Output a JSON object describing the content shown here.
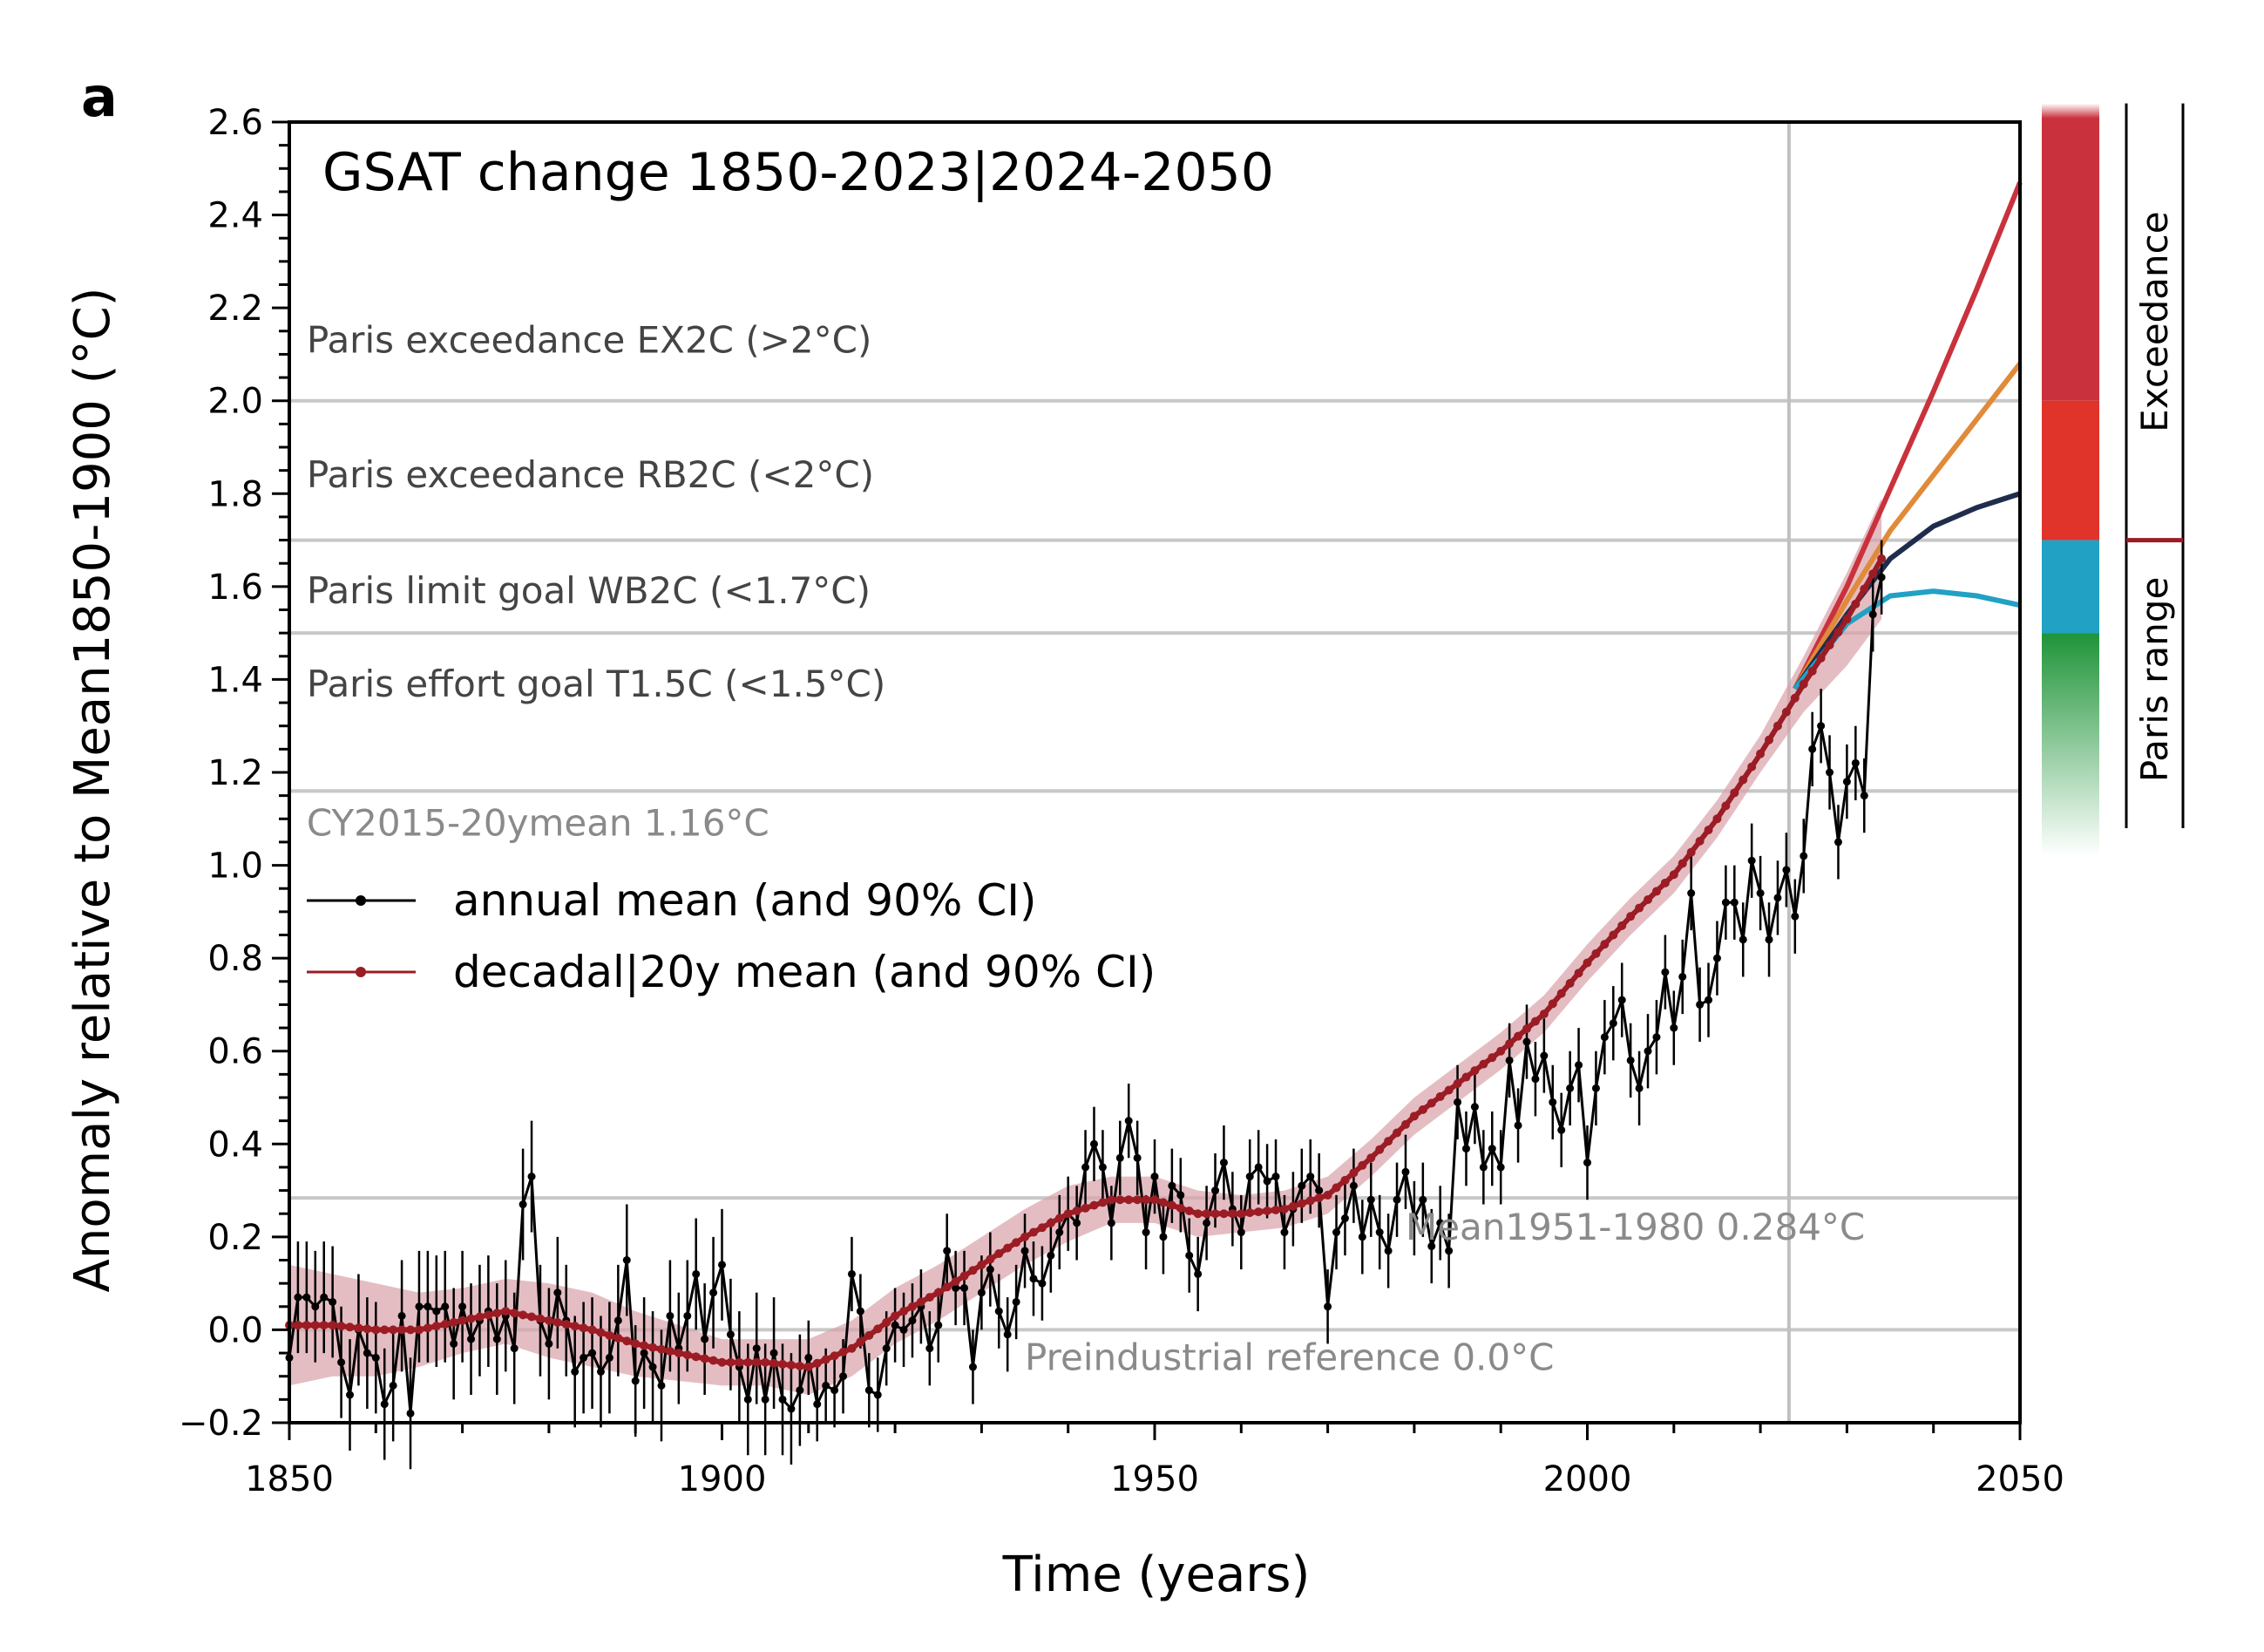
{
  "panel_letter": "a",
  "chart_data": {
    "type": "line",
    "title": "GSAT change 1850-2023|2024-2050",
    "xlabel": "Time (years)",
    "ylabel": "Anomaly relative to Mean1850-1900 (°C)",
    "xlim": [
      1850,
      2050
    ],
    "ylim": [
      -0.2,
      2.6
    ],
    "xticks": [
      1850,
      1900,
      1950,
      2000,
      2050
    ],
    "yticks": [
      "−0.2",
      "0.0",
      "0.2",
      "0.4",
      "0.6",
      "0.8",
      "1.0",
      "1.2",
      "1.4",
      "1.6",
      "1.8",
      "2.0",
      "2.2",
      "2.4",
      "2.6"
    ],
    "yticks_values": [
      -0.2,
      0.0,
      0.2,
      0.4,
      0.6,
      0.8,
      1.0,
      1.2,
      1.4,
      1.6,
      1.8,
      2.0,
      2.2,
      2.4,
      2.6
    ],
    "vertical_marker_year": 2023.3,
    "reference_lines": [
      {
        "y": 2.0,
        "label": "Paris exceedance EX2C (>2°C)",
        "label_y": 2.13,
        "style": "dark"
      },
      {
        "y": 1.7,
        "label": "Paris exceedance RB2C (<2°C)",
        "label_y": 1.84,
        "style": "dark"
      },
      {
        "y": 1.5,
        "label": "Paris limit goal WB2C (<1.7°C)",
        "label_y": 1.59,
        "style": "dark"
      },
      {
        "y": 1.16,
        "label": "Paris effort goal T1.5C (<1.5°C)",
        "label_y": 1.39,
        "style": "dark",
        "line_label_index": 4
      },
      {
        "y": 0.284,
        "label": "Mean1951-1980 0.284°C",
        "label_x": 1979,
        "label_y": 0.22,
        "style": "grey"
      },
      {
        "y": 0.0,
        "label": "Preindustrial reference 0.0°C",
        "label_x": 1935,
        "label_y": -0.06,
        "style": "grey"
      }
    ],
    "extra_labels": [
      {
        "text": "CY2015-20ymean 1.16°C",
        "x": 1852,
        "y": 1.09,
        "style": "grey"
      }
    ],
    "legend": {
      "placement": "center-left",
      "entries": [
        {
          "label": "annual mean (and 90% CI)",
          "color": "#000000"
        },
        {
          "label": "decadal|20y mean (and 90% CI)",
          "color": "#9b1c24"
        }
      ]
    },
    "annual_mean": {
      "name": "annual mean (and 90% CI)",
      "color": "#000000",
      "x_start": 1850,
      "values": [
        -0.06,
        0.07,
        0.07,
        0.05,
        0.07,
        0.06,
        -0.07,
        -0.14,
        0.0,
        -0.05,
        -0.06,
        -0.16,
        -0.12,
        0.03,
        -0.18,
        0.05,
        0.05,
        0.04,
        0.05,
        -0.03,
        0.05,
        -0.02,
        0.02,
        0.04,
        -0.02,
        0.03,
        -0.04,
        0.27,
        0.33,
        0.02,
        -0.03,
        0.08,
        0.02,
        -0.09,
        -0.06,
        -0.05,
        -0.09,
        -0.06,
        0.02,
        0.15,
        -0.11,
        -0.05,
        -0.08,
        -0.12,
        0.03,
        -0.04,
        0.03,
        0.12,
        -0.02,
        0.08,
        0.14,
        -0.01,
        -0.08,
        -0.15,
        -0.04,
        -0.15,
        -0.05,
        -0.15,
        -0.17,
        -0.13,
        -0.06,
        -0.16,
        -0.12,
        -0.13,
        -0.1,
        0.12,
        0.04,
        -0.13,
        -0.14,
        -0.04,
        0.01,
        0.0,
        0.02,
        0.05,
        -0.04,
        0.01,
        0.17,
        0.09,
        0.09,
        -0.08,
        0.08,
        0.13,
        0.04,
        -0.01,
        0.06,
        0.17,
        0.11,
        0.1,
        0.16,
        0.21,
        0.25,
        0.23,
        0.35,
        0.4,
        0.35,
        0.23,
        0.37,
        0.45,
        0.37,
        0.21,
        0.33,
        0.2,
        0.31,
        0.29,
        0.16,
        0.12,
        0.23,
        0.3,
        0.36,
        0.26,
        0.21,
        0.33,
        0.35,
        0.32,
        0.33,
        0.21,
        0.26,
        0.31,
        0.33,
        0.3,
        0.05,
        0.21,
        0.24,
        0.31,
        0.2,
        0.28,
        0.21,
        0.17,
        0.28,
        0.34,
        0.24,
        0.28,
        0.18,
        0.23,
        0.17,
        0.49,
        0.39,
        0.48,
        0.35,
        0.39,
        0.35,
        0.58,
        0.44,
        0.62,
        0.54,
        0.59,
        0.49,
        0.43,
        0.52,
        0.57,
        0.36,
        0.52,
        0.63,
        0.66,
        0.71,
        0.58,
        0.52,
        0.6,
        0.63,
        0.77,
        0.65,
        0.76,
        0.94,
        0.7,
        0.71,
        0.8,
        0.92,
        0.92,
        0.84,
        1.01,
        0.94,
        0.84,
        0.93,
        0.99,
        0.89,
        1.02,
        1.25,
        1.3,
        1.2,
        1.05,
        1.18,
        1.22,
        1.15,
        1.54,
        1.62
      ]
    },
    "decadal_mean": {
      "name": "decadal|20y mean (and 90% CI)",
      "color": "#9b1c24",
      "ci_color": "#d9a1aa",
      "x": [
        1850,
        1855,
        1860,
        1865,
        1870,
        1875,
        1880,
        1885,
        1890,
        1895,
        1900,
        1905,
        1910,
        1915,
        1920,
        1925,
        1930,
        1935,
        1940,
        1945,
        1950,
        1955,
        1960,
        1965,
        1970,
        1975,
        1980,
        1985,
        1990,
        1995,
        2000,
        2005,
        2010,
        2015,
        2020,
        2025,
        2030,
        2034
      ],
      "values": [
        0.01,
        0.01,
        0.0,
        0.0,
        0.02,
        0.04,
        0.02,
        0.0,
        -0.03,
        -0.05,
        -0.07,
        -0.07,
        -0.08,
        -0.04,
        0.03,
        0.08,
        0.14,
        0.2,
        0.25,
        0.28,
        0.28,
        0.25,
        0.25,
        0.26,
        0.29,
        0.37,
        0.46,
        0.53,
        0.6,
        0.68,
        0.79,
        0.89,
        0.98,
        1.1,
        1.24,
        1.39,
        1.53,
        1.66
      ],
      "ci_half_width": [
        0.13,
        0.11,
        0.1,
        0.08,
        0.07,
        0.07,
        0.08,
        0.08,
        0.07,
        0.06,
        0.05,
        0.05,
        0.06,
        0.06,
        0.06,
        0.06,
        0.06,
        0.06,
        0.06,
        0.05,
        0.05,
        0.05,
        0.04,
        0.04,
        0.04,
        0.04,
        0.04,
        0.04,
        0.04,
        0.04,
        0.04,
        0.04,
        0.04,
        0.04,
        0.04,
        0.06,
        0.1,
        0.13
      ]
    },
    "projections": [
      {
        "color": "#c9323c",
        "x": [
          2024,
          2030,
          2035,
          2040,
          2045,
          2050
        ],
        "values": [
          1.38,
          1.6,
          1.81,
          2.02,
          2.24,
          2.47
        ]
      },
      {
        "color": "#e08a3a",
        "x": [
          2024,
          2030,
          2035,
          2040,
          2045,
          2050
        ],
        "values": [
          1.38,
          1.57,
          1.72,
          1.84,
          1.96,
          2.08
        ]
      },
      {
        "color": "#1f2d4d",
        "x": [
          2024,
          2030,
          2035,
          2040,
          2045,
          2050
        ],
        "values": [
          1.38,
          1.54,
          1.66,
          1.73,
          1.77,
          1.8
        ]
      },
      {
        "color": "#21a1c4",
        "x": [
          2024,
          2030,
          2035,
          2040,
          2045,
          2050
        ],
        "values": [
          1.38,
          1.52,
          1.58,
          1.59,
          1.58,
          1.56
        ]
      }
    ],
    "side_bar": {
      "segments": [
        {
          "from": 2.0,
          "to": 2.64,
          "color": "#c9323c",
          "fade": "top"
        },
        {
          "from": 1.7,
          "to": 2.0,
          "color": "#e0332a"
        },
        {
          "from": 1.5,
          "to": 1.7,
          "color": "#21a1c4"
        },
        {
          "from": 1.02,
          "to": 1.5,
          "color": "#1e9438",
          "fade": "bottom"
        }
      ],
      "labels": [
        {
          "text": "Exceedance",
          "from": 1.7,
          "to": 2.64
        },
        {
          "text": "Paris range",
          "from": 1.1,
          "to": 1.7
        }
      ]
    }
  }
}
